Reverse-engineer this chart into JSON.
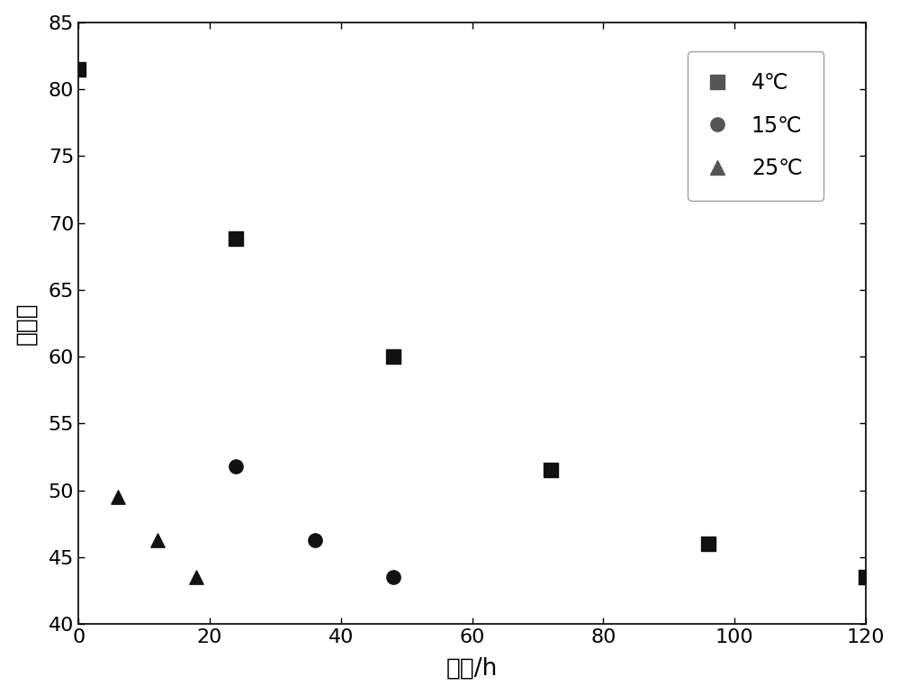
{
  "title": "",
  "xlabel": "时间/h",
  "ylabel": "色差值",
  "xlim": [
    0,
    120
  ],
  "ylim": [
    40,
    85
  ],
  "xticks": [
    0,
    20,
    40,
    60,
    80,
    100,
    120
  ],
  "yticks": [
    40,
    45,
    50,
    55,
    60,
    65,
    70,
    75,
    80,
    85
  ],
  "series": [
    {
      "label": "4°C",
      "marker": "s",
      "color": "#111111",
      "x": [
        0,
        24,
        48,
        72,
        96,
        120
      ],
      "y": [
        81.5,
        68.8,
        60.0,
        51.5,
        46.0,
        43.5
      ],
      "fit_xmax": 120
    },
    {
      "label": "15°C",
      "marker": "o",
      "color": "#111111",
      "x": [
        0,
        24,
        36,
        48
      ],
      "y": [
        81.5,
        51.8,
        46.3,
        43.5
      ],
      "fit_xmax": 120
    },
    {
      "label": "25°C",
      "marker": "^",
      "color": "#111111",
      "x": [
        0,
        6,
        12,
        18
      ],
      "y": [
        81.5,
        49.5,
        46.3,
        43.5
      ],
      "fit_xmax": 120
    }
  ],
  "legend_labels": [
    "4℃",
    "15℃",
    "25℃"
  ],
  "line_color": "#555555",
  "background_color": "#ffffff",
  "legend_fontsize": 17,
  "axis_fontsize": 19,
  "tick_fontsize": 16,
  "marker_size": 11,
  "line_width": 1.4
}
